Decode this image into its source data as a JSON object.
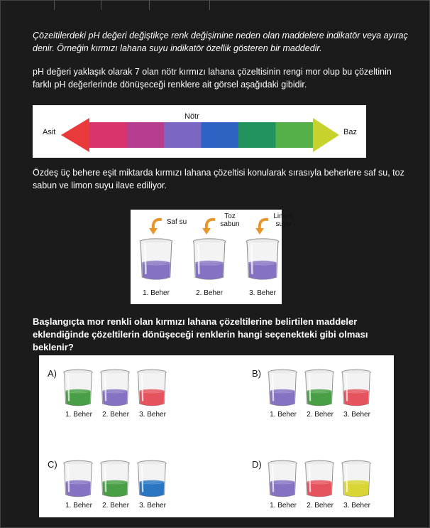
{
  "paragraphs": {
    "intro": "Çözeltilerdeki pH değeri değiştikçe renk değişimine neden olan maddelere indikatör veya ayıraç denir. Örneğin kırmızı lahana suyu indikatör özellik gösteren bir maddedir.",
    "ph_info": "pH değeri yaklaşık olarak 7 olan nötr kırmızı lahana çözeltisinin rengi mor olup bu çözeltinin farklı pH değerlerinde dönüşeceği renklere ait görsel aşağıdaki gibidir.",
    "setup": "Özdeş üç behere eşit miktarda kırmızı lahana çözeltisi konularak sırasıyla beherlere saf su, toz sabun ve limon suyu ilave ediliyor.",
    "question": "Başlangıçta mor renkli olan kırmızı lahana çözeltilerine belirtilen maddeler eklendiğinde çözeltilerin dönüşeceği renklerin hangi seçenekteki gibi olması beklenir?"
  },
  "scale": {
    "left_label": "Asit",
    "center_label": "Nötr",
    "right_label": "Baz",
    "colors": [
      "#e83a3a",
      "#d9346b",
      "#b53e8e",
      "#7b66c2",
      "#2e63c4",
      "#22935e",
      "#55b04a",
      "#c7d32c"
    ]
  },
  "setup_beakers": [
    {
      "added": "Saf su",
      "label": "1. Beher",
      "color": "#7e6ac0"
    },
    {
      "added": "Toz\nsabun",
      "label": "2. Beher",
      "color": "#7e6ac0"
    },
    {
      "added": "Limon\nsuyu",
      "label": "3. Beher",
      "color": "#7e6ac0"
    }
  ],
  "options": [
    {
      "letter": "A)",
      "beakers": [
        {
          "label": "1. Beher",
          "color": "#3f9a3c"
        },
        {
          "label": "2. Beher",
          "color": "#7e6ac0"
        },
        {
          "label": "3. Beher",
          "color": "#e44a55"
        }
      ]
    },
    {
      "letter": "B)",
      "beakers": [
        {
          "label": "1. Beher",
          "color": "#7e6ac0"
        },
        {
          "label": "2. Beher",
          "color": "#3f9a3c"
        },
        {
          "label": "3. Beher",
          "color": "#e44a55"
        }
      ]
    },
    {
      "letter": "C)",
      "beakers": [
        {
          "label": "1. Beher",
          "color": "#7e6ac0"
        },
        {
          "label": "2. Beher",
          "color": "#3f9a3c"
        },
        {
          "label": "3. Beher",
          "color": "#1f6fbf"
        }
      ]
    },
    {
      "letter": "D)",
      "beakers": [
        {
          "label": "1. Beher",
          "color": "#7e6ac0"
        },
        {
          "label": "2. Beher",
          "color": "#e44a55"
        },
        {
          "label": "3. Beher",
          "color": "#d7d32a"
        }
      ]
    }
  ]
}
